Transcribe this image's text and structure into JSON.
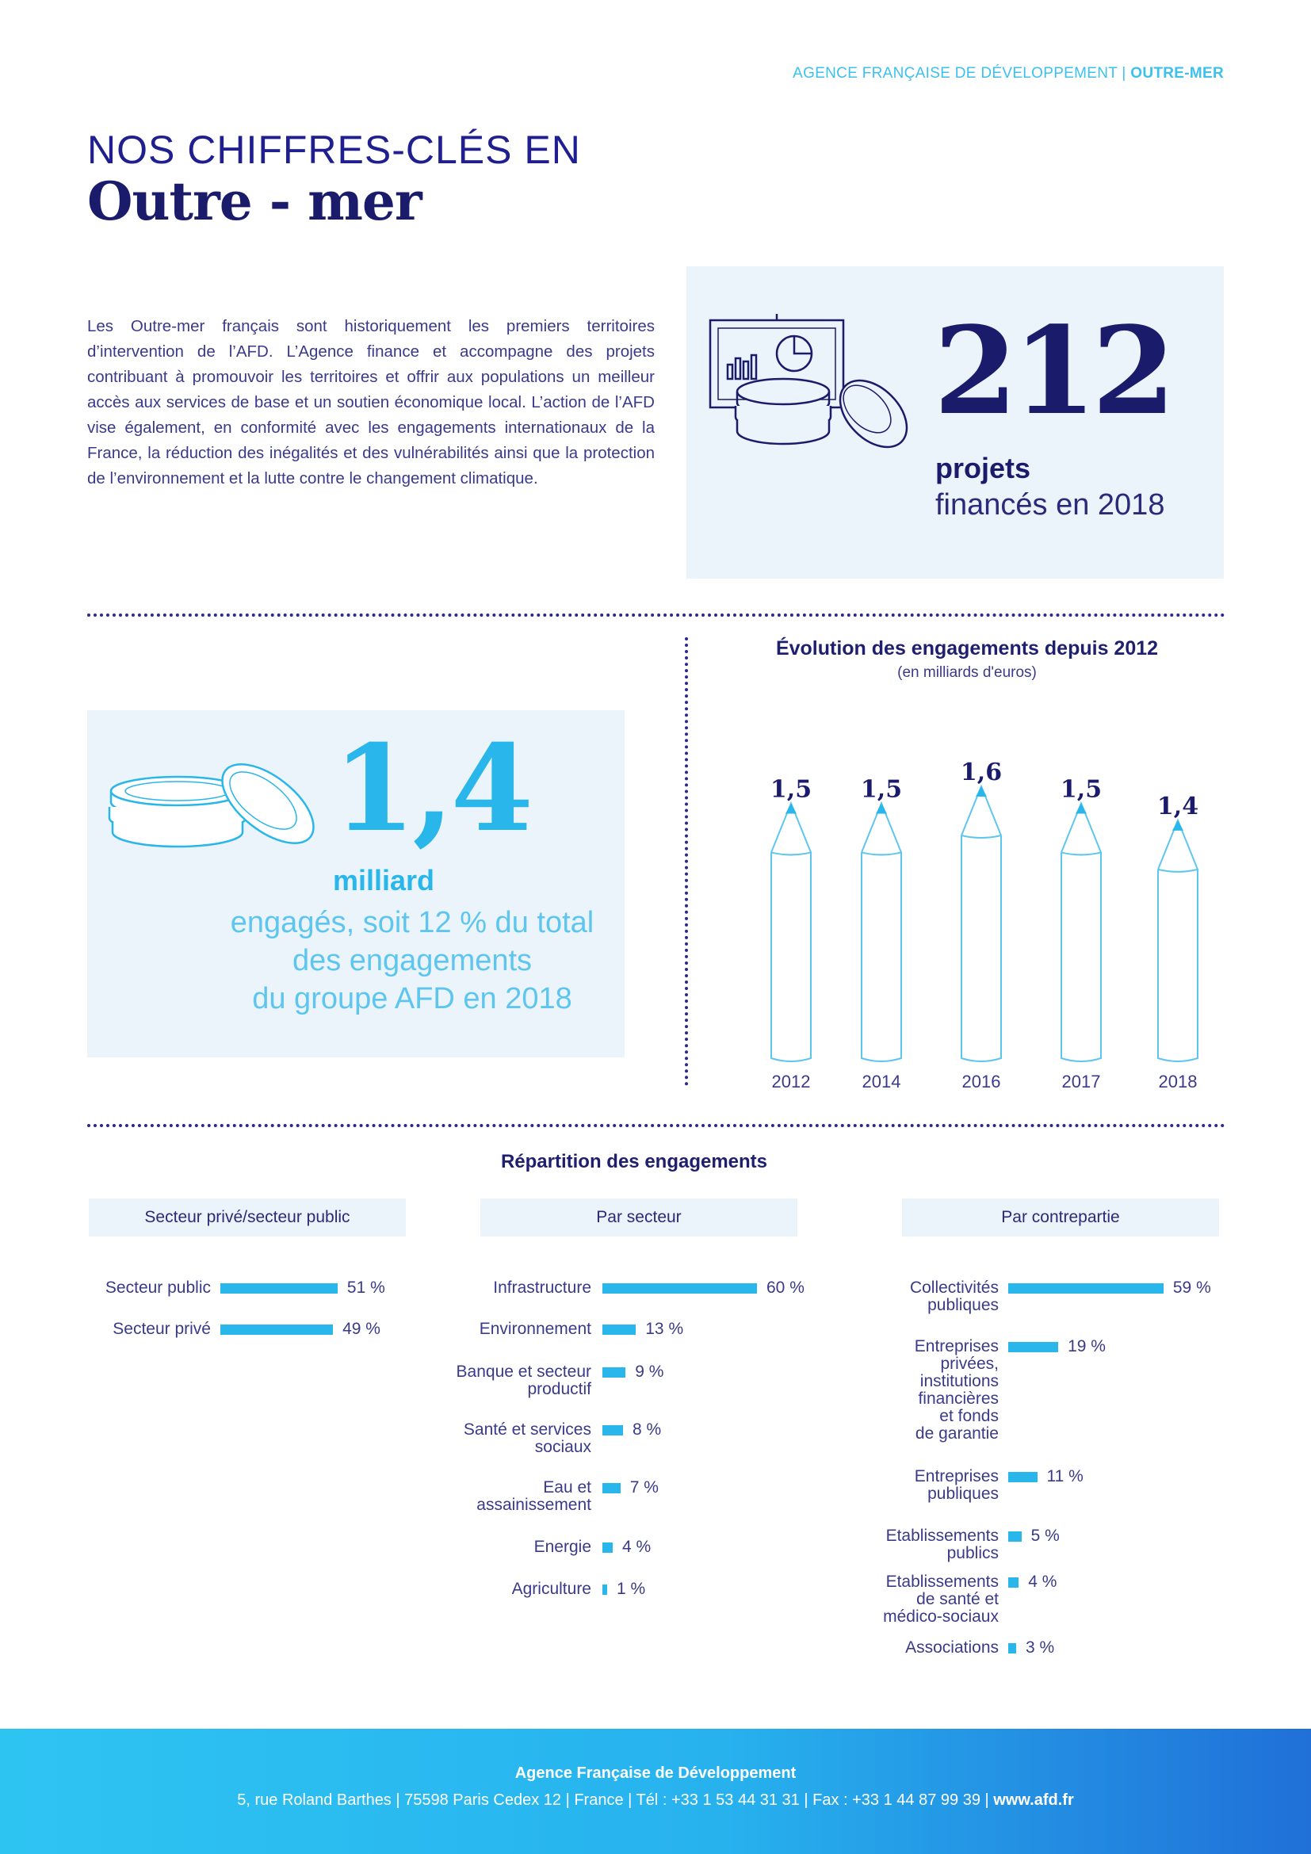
{
  "header": {
    "org": "AGENCE FRANÇAISE DE DÉVELOPPEMENT",
    "sep": " | ",
    "section": "OUTRE-MER"
  },
  "title": {
    "line1": "NOS CHIFFRES-CLÉS EN",
    "line2": "Outre - mer"
  },
  "intro": "Les Outre-mer français sont historiquement les premiers territoires d’intervention de l’AFD. L’Agence finance et accompagne des projets contribuant à promouvoir les territoires et offrir aux populations un meilleur accès aux services de base et un soutien économique local. L’action de l’AFD vise également, en conformité avec les engagements internationaux de la France, la réduction des inégalités et des vulnérabilités ainsi que la protection de l’environnement et la lutte contre le changement climatique.",
  "kpi_projects": {
    "value": "212",
    "label_bold": "projets",
    "label": "financés en 2018"
  },
  "kpi_amount": {
    "value": "1,4",
    "label_bold": "milliard",
    "label_lines": [
      "engagés, soit 12 % du total",
      "des engagements",
      "du groupe AFD en 2018"
    ]
  },
  "colors": {
    "navy": "#1b1b6b",
    "cyan": "#29b6ea",
    "light_bg": "#eaf4fa"
  },
  "chart_data": [
    {
      "type": "bar",
      "title": "Évolution des engagements depuis 2012",
      "subtitle": "(en milliards d'euros)",
      "categories": [
        "2012",
        "2014",
        "2016",
        "2017",
        "2018"
      ],
      "values": [
        1.5,
        1.5,
        1.6,
        1.5,
        1.4
      ],
      "value_labels": [
        "1,5",
        "1,5",
        "1,6",
        "1,5",
        "1,4"
      ],
      "style": "pencil-bars"
    },
    {
      "type": "bar",
      "orientation": "horizontal",
      "title": "Répartition des engagements",
      "subtitle": "Secteur privé/secteur public",
      "categories": [
        "Secteur public",
        "Secteur privé"
      ],
      "values": [
        51,
        49
      ],
      "value_labels": [
        "51 %",
        "49 %"
      ]
    },
    {
      "type": "bar",
      "orientation": "horizontal",
      "subtitle": "Par secteur",
      "categories": [
        "Infrastructure",
        "Environnement",
        "Banque et secteur productif",
        "Santé et services sociaux",
        "Eau et assainissement",
        "Energie",
        "Agriculture"
      ],
      "values": [
        60,
        13,
        9,
        8,
        7,
        4,
        1
      ],
      "value_labels": [
        "60 %",
        "13 %",
        "9 %",
        "8 %",
        "7 %",
        "4 %",
        "1 %"
      ]
    },
    {
      "type": "bar",
      "orientation": "horizontal",
      "subtitle": "Par contrepartie",
      "categories": [
        "Collectivités publiques",
        "Entreprises privées, institutions financières et fonds de garantie",
        "Entreprises publiques",
        "Etablissements publics",
        "Etablissements de santé et médico-sociaux",
        "Associations"
      ],
      "values": [
        59,
        19,
        11,
        5,
        4,
        3
      ],
      "value_labels": [
        "59 %",
        "19 %",
        "11 %",
        "5 %",
        "4 %",
        "3 %"
      ]
    }
  ],
  "footer": {
    "org": "Agence Française de Développement",
    "address": "5, rue Roland Barthes | 75598 Paris Cedex 12 | France | Tél : +33 1 53 44 31 31 | Fax : +33 1 44 87 99 39 | ",
    "site": "www.afd.fr"
  }
}
